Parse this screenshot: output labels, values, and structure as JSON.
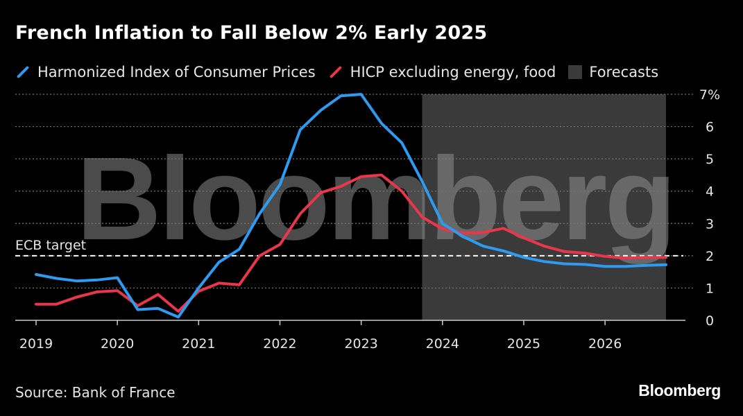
{
  "title": "French Inflation to Fall Below 2% Early 2025",
  "source": "Source: Bank of France",
  "brand": "Bloomberg",
  "watermark": "Bloomberg",
  "colors": {
    "background": "#000000",
    "series_headline": "#2e9bf0",
    "series_core": "#e8374a",
    "forecast_band": "#3a3a3a",
    "grid": "#777777",
    "target_line": "#ffffff"
  },
  "chart_data": {
    "type": "line",
    "title": "French Inflation to Fall Below 2% Early 2025",
    "xlabel": "",
    "ylabel": "",
    "x_ticks": [
      "2019",
      "2020",
      "2021",
      "2022",
      "2023",
      "2024",
      "2025",
      "2026"
    ],
    "x_tick_values": [
      2019,
      2020,
      2021,
      2022,
      2023,
      2024,
      2025,
      2026
    ],
    "xlim": [
      2019,
      2026.75
    ],
    "y_ticks": [
      "0",
      "1",
      "2",
      "3",
      "4",
      "5",
      "6",
      "7%"
    ],
    "y_tick_values": [
      0,
      1,
      2,
      3,
      4,
      5,
      6,
      7
    ],
    "ylim": [
      0,
      7
    ],
    "grid": true,
    "reference_line": {
      "label": "ECB target",
      "value": 2
    },
    "forecast_region": {
      "label": "Forecasts",
      "start": 2023.75,
      "end": 2026.75
    },
    "legend": [
      {
        "label": "Harmonized Index of Consumer Prices",
        "kind": "line",
        "series": 0
      },
      {
        "label": "HICP excluding energy, food",
        "kind": "line",
        "series": 1
      },
      {
        "label": "Forecasts",
        "kind": "box"
      }
    ],
    "x": [
      2019.0,
      2019.25,
      2019.5,
      2019.75,
      2020.0,
      2020.25,
      2020.5,
      2020.75,
      2021.0,
      2021.25,
      2021.5,
      2021.75,
      2022.0,
      2022.25,
      2022.5,
      2022.75,
      2023.0,
      2023.25,
      2023.5,
      2023.75,
      2024.0,
      2024.25,
      2024.5,
      2024.75,
      2025.0,
      2025.25,
      2025.5,
      2025.75,
      2026.0,
      2026.25,
      2026.5,
      2026.75
    ],
    "series": [
      {
        "name": "Harmonized Index of Consumer Prices",
        "values": [
          1.42,
          1.3,
          1.22,
          1.25,
          1.32,
          0.33,
          0.37,
          0.1,
          1.0,
          1.8,
          2.2,
          3.3,
          4.2,
          5.9,
          6.5,
          6.95,
          7.0,
          6.1,
          5.5,
          4.3,
          3.0,
          2.6,
          2.3,
          2.15,
          1.95,
          1.82,
          1.75,
          1.73,
          1.67,
          1.67,
          1.7,
          1.72
        ]
      },
      {
        "name": "HICP excluding energy, food",
        "values": [
          0.5,
          0.5,
          0.72,
          0.88,
          0.92,
          0.45,
          0.8,
          0.28,
          0.9,
          1.15,
          1.1,
          2.0,
          2.35,
          3.3,
          3.95,
          4.15,
          4.45,
          4.5,
          4.0,
          3.2,
          2.83,
          2.7,
          2.72,
          2.85,
          2.55,
          2.3,
          2.13,
          2.08,
          1.98,
          1.93,
          1.95,
          1.95
        ]
      }
    ]
  }
}
